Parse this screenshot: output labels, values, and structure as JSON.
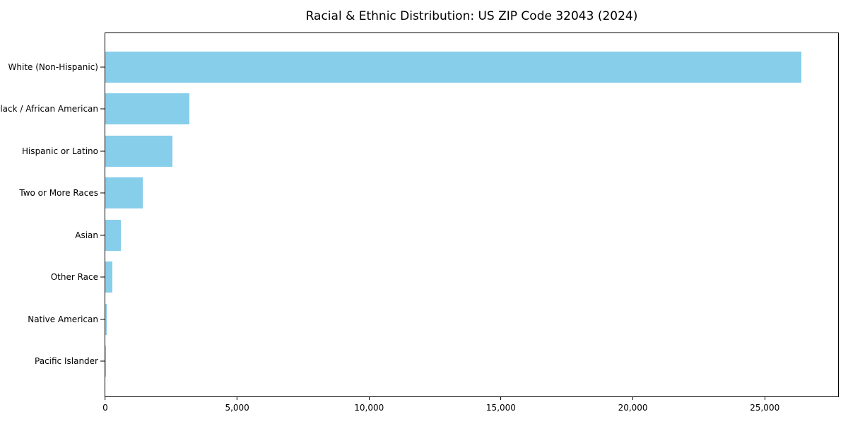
{
  "figure": {
    "background_color": "#ffffff",
    "frame_color": "#000000"
  },
  "chart_data": {
    "type": "bar",
    "orientation": "horizontal",
    "title": "Racial & Ethnic Distribution: US ZIP Code 32043 (2024)",
    "xlabel": "",
    "ylabel": "",
    "categories": [
      "White (Non-Hispanic)",
      "Black / African American",
      "Hispanic or Latino",
      "Two or More Races",
      "Asian",
      "Other Race",
      "Native American",
      "Pacific Islander"
    ],
    "values": [
      26400,
      3200,
      2550,
      1420,
      590,
      270,
      55,
      15
    ],
    "bar_color": "#87CEEB",
    "xlim": [
      0,
      27780
    ],
    "xticks": [
      0,
      5000,
      10000,
      15000,
      20000,
      25000
    ],
    "xtick_labels": [
      "0",
      "5,000",
      "10,000",
      "15,000",
      "20,000",
      "25,000"
    ],
    "grid": false,
    "legend_position": "none"
  }
}
